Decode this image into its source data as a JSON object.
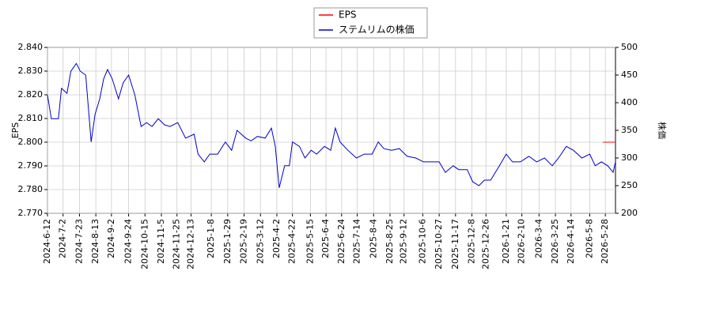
{
  "chart_data": {
    "type": "line",
    "ylabel": "EPS",
    "y2label": "株価",
    "xlim": [
      "2024-6-12",
      "2026-6-10"
    ],
    "xticks": [
      "2024-6-12",
      "2024-7-2",
      "2024-7-23",
      "2024-8-13",
      "2024-9-2",
      "2024-9-24",
      "2024-10-15",
      "2024-11-5",
      "2024-11-25",
      "2024-12-13",
      "2025-1-8",
      "2025-1-29",
      "2025-2-19",
      "2025-3-12",
      "2025-4-2",
      "2025-4-22",
      "2025-5-15",
      "2025-6-4",
      "2025-6-24",
      "2025-7-14",
      "2025-8-4",
      "2025-8-25",
      "2025-9-12",
      "2025-10-6",
      "2025-10-27",
      "2025-11-17",
      "2025-12-8",
      "2025-12-26",
      "2026-1-21",
      "2026-2-10",
      "2026-3-4",
      "2026-3-25",
      "2026-4-14",
      "2026-5-8",
      "2026-5-28"
    ],
    "ylim": [
      2.77,
      2.84
    ],
    "yticks": [
      {
        "value": 2.77,
        "label": "2.770"
      },
      {
        "value": 2.78,
        "label": "2.780"
      },
      {
        "value": 2.79,
        "label": "2.790"
      },
      {
        "value": 2.8,
        "label": "2.800"
      },
      {
        "value": 2.81,
        "label": "2.810"
      },
      {
        "value": 2.82,
        "label": "2.820"
      },
      {
        "value": 2.83,
        "label": "2.830"
      },
      {
        "value": 2.84,
        "label": "2.840"
      }
    ],
    "y2lim": [
      200,
      500
    ],
    "y2ticks": [
      200,
      250,
      300,
      350,
      400,
      450,
      500
    ],
    "grid": true,
    "legend": "top",
    "series": [
      {
        "name": "EPS",
        "color": "#ff0000",
        "x": [
          "2026-5-25",
          "2026-6-10"
        ],
        "values": [
          2.8,
          2.8
        ]
      },
      {
        "name": "ステムリムの株価",
        "color": "#0000cc",
        "axis": "y2",
        "x": [
          "2024-6-12",
          "2024-6-17",
          "2024-6-26",
          "2024-6-30",
          "2024-7-7",
          "2024-7-12",
          "2024-7-19",
          "2024-7-24",
          "2024-7-31",
          "2024-8-7",
          "2024-8-12",
          "2024-8-18",
          "2024-8-23",
          "2024-8-28",
          "2024-9-3",
          "2024-9-11",
          "2024-9-17",
          "2024-9-24",
          "2024-10-2",
          "2024-10-10",
          "2024-10-17",
          "2024-10-24",
          "2024-11-1",
          "2024-11-9",
          "2024-11-16",
          "2024-11-26",
          "2024-12-6",
          "2024-12-17",
          "2024-12-22",
          "2024-12-30",
          "2025-1-6",
          "2025-1-16",
          "2025-1-26",
          "2025-2-3",
          "2025-2-10",
          "2025-2-21",
          "2025-2-28",
          "2025-3-8",
          "2025-3-18",
          "2025-3-26",
          "2025-3-31",
          "2025-4-5",
          "2025-4-12",
          "2025-4-18",
          "2025-4-22",
          "2025-5-1",
          "2025-5-8",
          "2025-5-16",
          "2025-5-23",
          "2025-6-2",
          "2025-6-10",
          "2025-6-16",
          "2025-6-22",
          "2025-7-2",
          "2025-7-13",
          "2025-7-23",
          "2025-8-2",
          "2025-8-10",
          "2025-8-17",
          "2025-8-27",
          "2025-9-6",
          "2025-9-16",
          "2025-9-27",
          "2025-10-7",
          "2025-10-17",
          "2025-10-27",
          "2025-11-4",
          "2025-11-14",
          "2025-11-21",
          "2025-12-2",
          "2025-12-9",
          "2025-12-17",
          "2025-12-24",
          "2026-1-1",
          "2026-1-11",
          "2026-1-21",
          "2026-1-29",
          "2026-2-8",
          "2026-2-19",
          "2026-3-1",
          "2026-3-11",
          "2026-3-21",
          "2026-3-29",
          "2026-4-8",
          "2026-4-17",
          "2026-4-28",
          "2026-5-8",
          "2026-5-15",
          "2026-5-23",
          "2026-5-31",
          "2026-6-7",
          "2026-6-10"
        ],
        "values": [
          414,
          371,
          371,
          426,
          417,
          457,
          471,
          457,
          450,
          329,
          379,
          407,
          443,
          460,
          443,
          407,
          436,
          450,
          414,
          357,
          364,
          357,
          371,
          360,
          357,
          364,
          336,
          343,
          307,
          293,
          307,
          307,
          329,
          314,
          350,
          336,
          331,
          339,
          336,
          354,
          321,
          246,
          286,
          286,
          329,
          321,
          300,
          314,
          307,
          321,
          314,
          354,
          329,
          314,
          300,
          307,
          307,
          329,
          317,
          314,
          317,
          303,
          300,
          293,
          293,
          293,
          274,
          286,
          279,
          279,
          257,
          250,
          260,
          260,
          283,
          307,
          293,
          293,
          303,
          293,
          300,
          286,
          300,
          321,
          314,
          300,
          307,
          286,
          293,
          286,
          274,
          293
        ]
      }
    ]
  }
}
